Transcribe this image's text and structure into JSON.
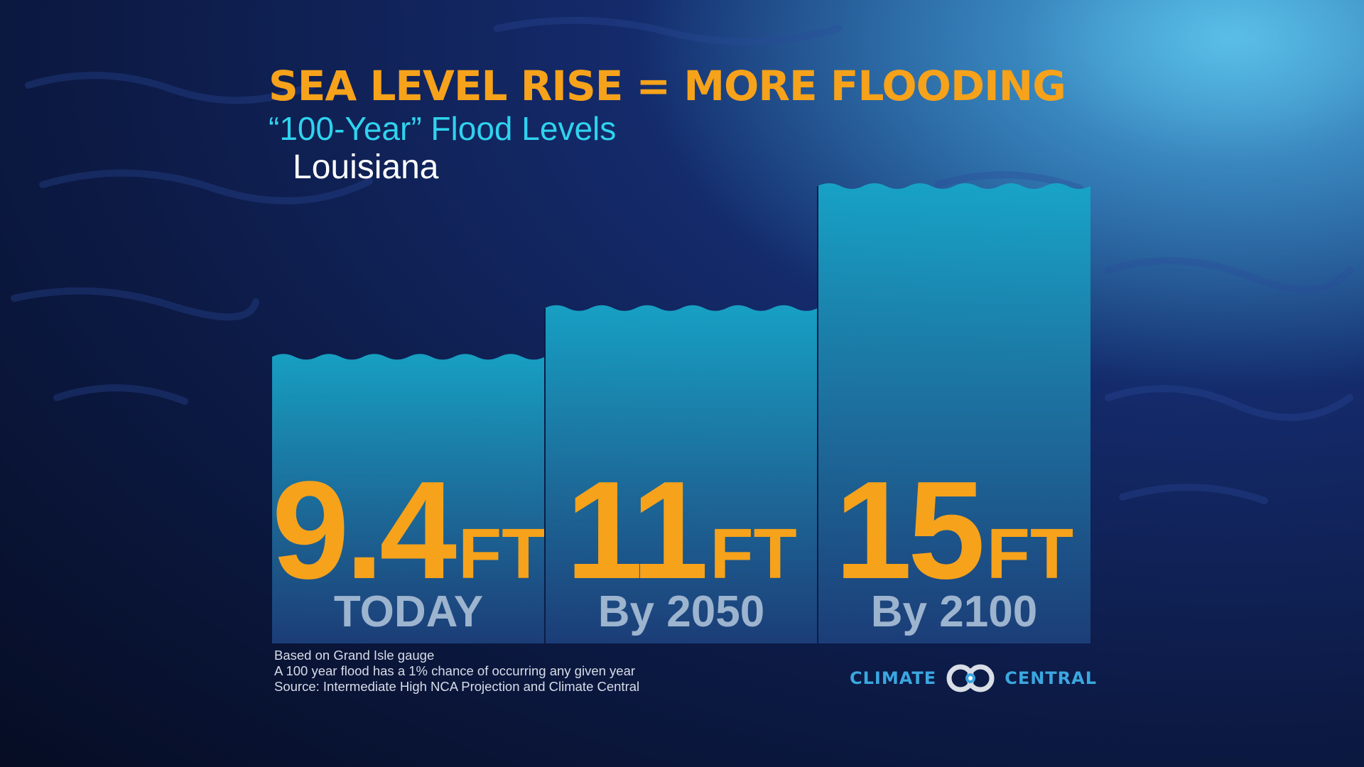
{
  "header": {
    "title": "SEA LEVEL RISE = MORE FLOODING",
    "subtitle": "“100-Year” Flood Levels",
    "region": "Louisiana"
  },
  "chart_data": {
    "type": "bar",
    "categories": [
      "TODAY",
      "By 2050",
      "By 2100"
    ],
    "values": [
      9.4,
      11,
      15
    ],
    "value_labels": [
      "9.4",
      "11",
      "15"
    ],
    "unit": "FT",
    "title": "SEA LEVEL RISE = MORE FLOODING",
    "subtitle": "“100-Year” Flood Levels",
    "xlabel": "",
    "ylabel": "",
    "ylim": [
      0,
      15
    ],
    "grid": false,
    "legend": "none",
    "colors": {
      "bar": "#1f7fa6",
      "bar_top": "#17a6c8",
      "value": "#f6a21b",
      "category": "#9db4cf"
    }
  },
  "footnotes": [
    "Based on Grand Isle gauge",
    "A 100 year flood has a 1% chance of occurring any given year",
    "Source: Intermediate High NCA Projection and Climate Central"
  ],
  "logo": {
    "left_text": "CLIMATE",
    "right_text": "CENTRAL",
    "icon": "climate-central-rings-icon"
  },
  "colors": {
    "accent": "#f6a21b",
    "subtitle": "#2fd3ee",
    "background": "#0c1a45",
    "logo": "#3ba7e0"
  }
}
